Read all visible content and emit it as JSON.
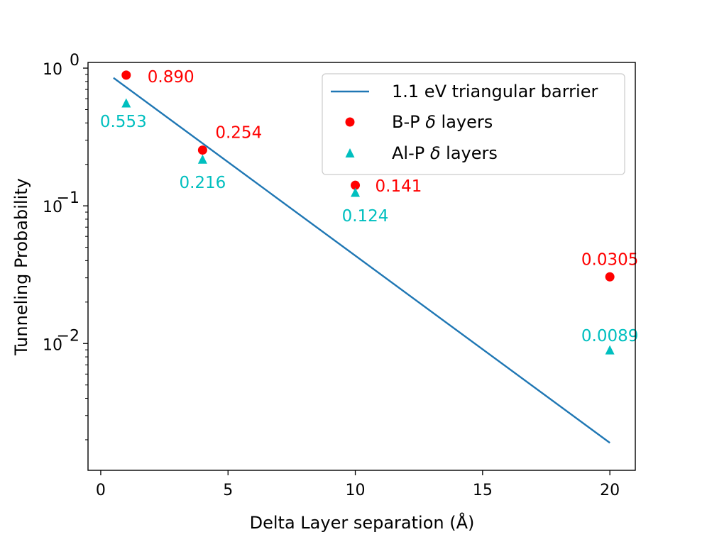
{
  "chart_data": {
    "type": "scatter",
    "xlabel": "Delta Layer separation (Å)",
    "ylabel": "Tunneling Probability",
    "xlim": [
      -0.5,
      21
    ],
    "ylim": [
      0.0012,
      1.1
    ],
    "yscale": "log",
    "x_ticks": [
      0,
      5,
      10,
      15,
      20
    ],
    "y_ticks": [
      {
        "value": 1,
        "base": "10",
        "exp": "0"
      },
      {
        "value": 0.1,
        "base": "10",
        "exp": "−1"
      },
      {
        "value": 0.01,
        "base": "10",
        "exp": "−2"
      }
    ],
    "legend_position": "top-right",
    "series": [
      {
        "name": "1.1 eV triangular barrier",
        "kind": "line",
        "color": "#1f77b4",
        "x": [
          0.5,
          20
        ],
        "y": [
          0.85,
          0.0019
        ]
      },
      {
        "name": "B-P δ layers",
        "legend_prefix": "B-P ",
        "legend_symbol": "δ",
        "legend_suffix": " layers",
        "kind": "points",
        "marker": "circle",
        "color": "#ff0000",
        "x": [
          1,
          4,
          10,
          20
        ],
        "y": [
          0.89,
          0.254,
          0.141,
          0.0305
        ],
        "labels": [
          "0.890",
          "0.254",
          "0.141",
          "0.0305"
        ]
      },
      {
        "name": "Al-P δ layers",
        "legend_prefix": "Al-P ",
        "legend_symbol": "δ",
        "legend_suffix": " layers",
        "kind": "points",
        "marker": "triangle",
        "color": "#00bfbf",
        "x": [
          1,
          4,
          10,
          20
        ],
        "y": [
          0.553,
          0.216,
          0.124,
          0.0089
        ],
        "labels": [
          "0.553",
          "0.216",
          "0.124",
          "0.0089"
        ]
      }
    ]
  }
}
